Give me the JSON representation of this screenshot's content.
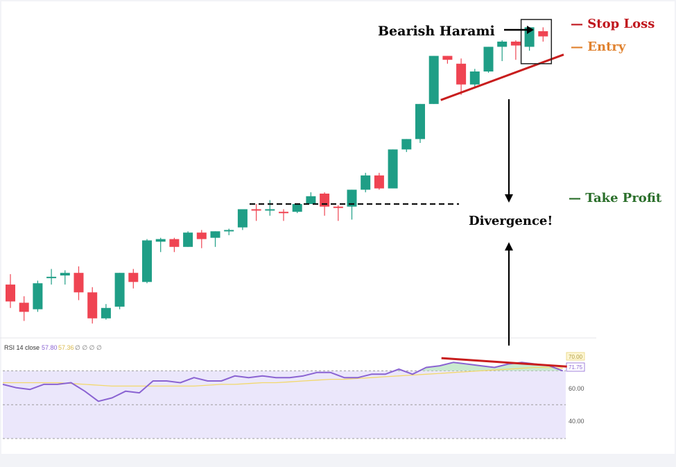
{
  "annotations": {
    "bearish_harami": "Bearish Harami",
    "stop_loss": "— Stop Loss",
    "entry": "— Entry",
    "take_profit": "— Take Profit",
    "divergence": "Divergence!"
  },
  "colors": {
    "bull": "#1f9e86",
    "bear": "#ef4452",
    "rsi_line": "#8a63d2",
    "rsi_ma": "#f2d86b",
    "trendline": "#c81d1d",
    "stop_loss": "#c0161d",
    "entry": "#e0822f",
    "take_profit": "#2a6e2a"
  },
  "rsi_panel": {
    "title": "RSI 14 close",
    "value1": "57.80",
    "value2": "57.36",
    "placeholders": "∅ ∅ ∅ ∅",
    "tick_60": "60.00",
    "tick_40": "40.00",
    "badge_upper": "70.00",
    "badge_lower": "71.75"
  },
  "chart_data": [
    {
      "type": "candlestick",
      "y_units": "price (unlabeled)",
      "candles": [
        {
          "o": 52.2,
          "h": 53.0,
          "c": 50.9,
          "l": 50.4
        },
        {
          "o": 50.8,
          "h": 51.3,
          "c": 50.1,
          "l": 49.4
        },
        {
          "o": 50.3,
          "h": 52.5,
          "c": 52.3,
          "l": 50.1
        },
        {
          "o": 52.7,
          "h": 53.4,
          "c": 52.8,
          "l": 52.2
        },
        {
          "o": 52.9,
          "h": 53.3,
          "c": 53.1,
          "l": 52.2
        },
        {
          "o": 53.1,
          "h": 53.6,
          "c": 51.6,
          "l": 51.0
        },
        {
          "o": 51.6,
          "h": 52.0,
          "c": 49.6,
          "l": 49.2
        },
        {
          "o": 49.6,
          "h": 50.7,
          "c": 50.4,
          "l": 49.5
        },
        {
          "o": 50.5,
          "h": 53.1,
          "c": 53.1,
          "l": 50.3
        },
        {
          "o": 53.1,
          "h": 53.4,
          "c": 52.4,
          "l": 51.9
        },
        {
          "o": 52.4,
          "h": 55.7,
          "c": 55.6,
          "l": 52.3
        },
        {
          "o": 55.5,
          "h": 55.8,
          "c": 55.7,
          "l": 54.7
        },
        {
          "o": 55.7,
          "h": 55.8,
          "c": 55.1,
          "l": 54.7
        },
        {
          "o": 55.1,
          "h": 56.3,
          "c": 56.2,
          "l": 55.1
        },
        {
          "o": 56.2,
          "h": 56.4,
          "c": 55.7,
          "l": 55.0
        },
        {
          "o": 55.8,
          "h": 56.3,
          "c": 56.3,
          "l": 55.1
        },
        {
          "o": 56.3,
          "h": 56.5,
          "c": 56.4,
          "l": 56.0
        },
        {
          "o": 56.6,
          "h": 58.0,
          "c": 58.0,
          "l": 56.4
        },
        {
          "o": 58.0,
          "h": 58.4,
          "c": 57.9,
          "l": 57.1
        },
        {
          "o": 58.0,
          "h": 58.7,
          "c": 58.0,
          "l": 57.5
        },
        {
          "o": 57.8,
          "h": 58.0,
          "c": 57.7,
          "l": 57.1
        },
        {
          "o": 57.8,
          "h": 58.4,
          "c": 58.4,
          "l": 57.7
        },
        {
          "o": 58.4,
          "h": 59.3,
          "c": 59.0,
          "l": 58.4
        },
        {
          "o": 59.2,
          "h": 59.3,
          "c": 58.2,
          "l": 57.5
        },
        {
          "o": 58.2,
          "h": 58.3,
          "c": 58.1,
          "l": 57.1
        },
        {
          "o": 58.2,
          "h": 59.5,
          "c": 59.5,
          "l": 57.2
        },
        {
          "o": 59.5,
          "h": 60.8,
          "c": 60.6,
          "l": 59.3
        },
        {
          "o": 60.6,
          "h": 60.8,
          "c": 59.6,
          "l": 59.5
        },
        {
          "o": 59.6,
          "h": 62.6,
          "c": 62.6,
          "l": 59.6
        },
        {
          "o": 62.6,
          "h": 63.4,
          "c": 63.4,
          "l": 62.4
        },
        {
          "o": 63.4,
          "h": 66.1,
          "c": 66.1,
          "l": 63.1
        },
        {
          "o": 66.1,
          "h": 69.8,
          "c": 69.8,
          "l": 66.1
        },
        {
          "o": 69.8,
          "h": 69.8,
          "c": 69.5,
          "l": 69.2
        },
        {
          "o": 69.2,
          "h": 69.6,
          "c": 67.6,
          "l": 66.8
        },
        {
          "o": 67.6,
          "h": 68.8,
          "c": 68.6,
          "l": 67.3
        },
        {
          "o": 68.6,
          "h": 70.5,
          "c": 70.5,
          "l": 68.5
        },
        {
          "o": 70.5,
          "h": 71.0,
          "c": 70.9,
          "l": 69.4
        },
        {
          "o": 70.9,
          "h": 71.0,
          "c": 70.6,
          "l": 69.5
        },
        {
          "o": 70.5,
          "h": 72.0,
          "c": 72.0,
          "l": 70.2
        },
        {
          "o": 71.7,
          "h": 72.0,
          "c": 71.3,
          "l": 70.9
        }
      ],
      "horizontal_level": 58.4,
      "price_trendline": [
        {
          "index": 31,
          "value": 66.4
        },
        {
          "index": 40,
          "value": 69.9
        }
      ]
    },
    {
      "type": "line",
      "title": "RSI 14 close",
      "ylim": [
        30,
        80
      ],
      "y_ticks": [
        40,
        60
      ],
      "upper_band": 70,
      "series": [
        {
          "name": "RSI",
          "values": [
            62,
            60,
            59,
            62,
            62,
            63,
            58,
            52,
            54,
            58,
            57,
            64,
            64,
            63,
            66,
            64,
            64,
            67,
            66,
            67,
            66,
            66,
            67,
            69,
            69,
            66,
            66,
            68,
            68,
            71,
            68,
            72,
            73,
            75,
            74,
            73,
            72,
            74,
            75,
            74,
            73,
            70
          ]
        },
        {
          "name": "RSI-based MA",
          "values": [
            63,
            63,
            63,
            63,
            63,
            62.5,
            62,
            61.5,
            61,
            61,
            61,
            61,
            61,
            61,
            61,
            61.5,
            62,
            62,
            62.5,
            63,
            63,
            63.5,
            64,
            64.5,
            65,
            65,
            65.5,
            66,
            66.5,
            67,
            67.5,
            68,
            68.5,
            69,
            69.5,
            70,
            70.5,
            71,
            71.5,
            72,
            72,
            71.5
          ]
        }
      ],
      "rsi_trendline": [
        {
          "index": 31,
          "value": 77.5
        },
        {
          "index": 41,
          "value": 72.5
        }
      ]
    }
  ]
}
